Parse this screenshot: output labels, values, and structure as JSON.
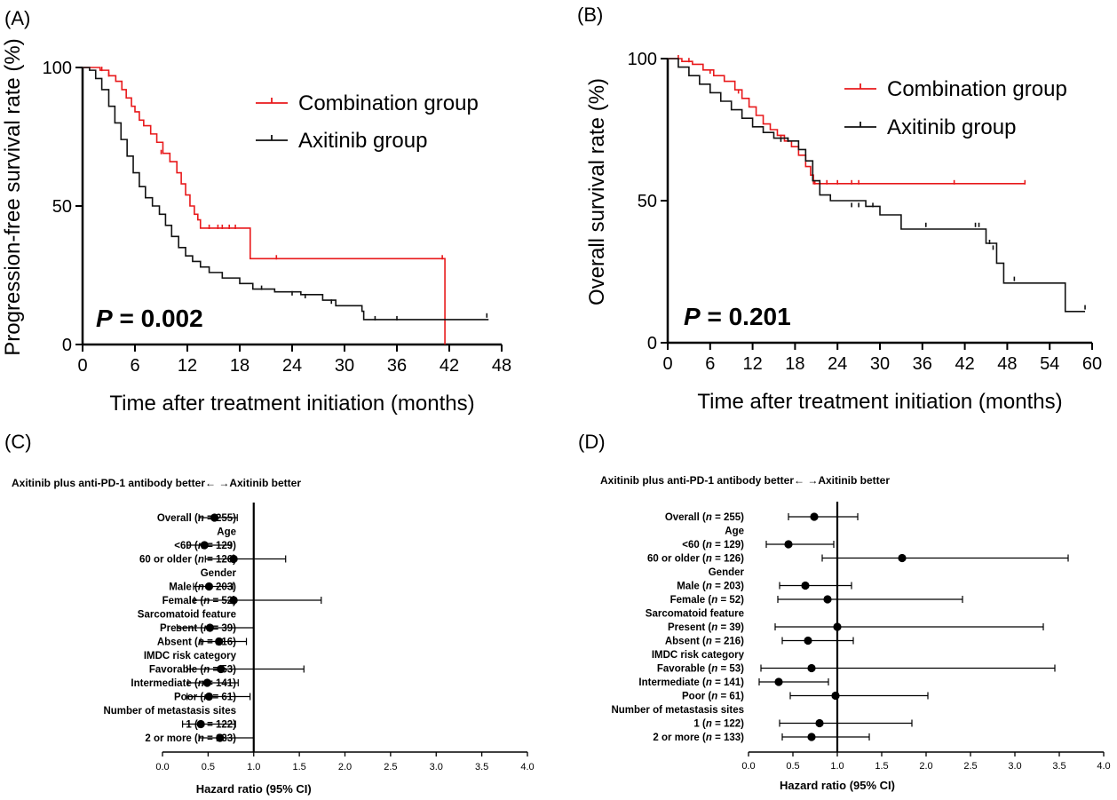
{
  "chart_data": [
    {
      "id": "A",
      "type": "line",
      "panel_label": "(A)",
      "ylabel": "Progression-free survival rate (%)",
      "xlabel": "Time after treatment initiation (months)",
      "xlim": [
        0,
        48
      ],
      "ylim": [
        0,
        100
      ],
      "xticks": [
        "0",
        "6",
        "12",
        "18",
        "24",
        "30",
        "36",
        "42",
        "48"
      ],
      "yticks": [
        "0",
        "50",
        "100"
      ],
      "p_label": "P",
      "p_value": "= 0.002",
      "series": [
        {
          "name": "Combination group",
          "color": "#e8191b",
          "points": [
            [
              0,
              100
            ],
            [
              1,
              100
            ],
            [
              2,
              99
            ],
            [
              3,
              97
            ],
            [
              3.8,
              95
            ],
            [
              4.5,
              92
            ],
            [
              5,
              89
            ],
            [
              5.6,
              86
            ],
            [
              6,
              84
            ],
            [
              6.5,
              81
            ],
            [
              7,
              79
            ],
            [
              7.8,
              76
            ],
            [
              8.5,
              73
            ],
            [
              9.2,
              69
            ],
            [
              10,
              66
            ],
            [
              10.8,
              62
            ],
            [
              11.3,
              58
            ],
            [
              11.8,
              54
            ],
            [
              12.3,
              50
            ],
            [
              12.8,
              47
            ],
            [
              13.2,
              45
            ],
            [
              13.5,
              42
            ],
            [
              19.2,
              42
            ],
            [
              19.2,
              31
            ],
            [
              41.5,
              31
            ],
            [
              41.5,
              0
            ]
          ],
          "censors": [
            [
              2.2,
              99
            ],
            [
              3,
              97
            ],
            [
              9,
              69
            ],
            [
              14.5,
              42
            ],
            [
              15.5,
              42
            ],
            [
              16,
              42
            ],
            [
              16.8,
              42
            ],
            [
              17.5,
              42
            ],
            [
              22.2,
              31
            ],
            [
              41.2,
              31
            ]
          ]
        },
        {
          "name": "Axitinib group",
          "color": "#111111",
          "points": [
            [
              0,
              100
            ],
            [
              0.8,
              99
            ],
            [
              1.5,
              96
            ],
            [
              2.2,
              92
            ],
            [
              3,
              86
            ],
            [
              3.7,
              80
            ],
            [
              4.4,
              74
            ],
            [
              5.1,
              68
            ],
            [
              5.8,
              62
            ],
            [
              6.5,
              57
            ],
            [
              7.2,
              53
            ],
            [
              8,
              50
            ],
            [
              8.8,
              47
            ],
            [
              9.5,
              43
            ],
            [
              10.2,
              39
            ],
            [
              11,
              35
            ],
            [
              11.8,
              32
            ],
            [
              12.6,
              30
            ],
            [
              13.5,
              28
            ],
            [
              14.5,
              26
            ],
            [
              16,
              24
            ],
            [
              18,
              22
            ],
            [
              19.5,
              20
            ],
            [
              22,
              19
            ],
            [
              25,
              18
            ],
            [
              27.5,
              16
            ],
            [
              29,
              14
            ],
            [
              32,
              12
            ],
            [
              32.2,
              9
            ],
            [
              46.5,
              9
            ]
          ],
          "censors": [
            [
              20.5,
              20
            ],
            [
              24,
              18
            ],
            [
              25.5,
              17
            ],
            [
              28.5,
              15
            ],
            [
              33.5,
              9
            ],
            [
              36,
              9
            ],
            [
              46.3,
              10
            ]
          ]
        }
      ]
    },
    {
      "id": "B",
      "type": "line",
      "panel_label": "(B)",
      "ylabel": "Overall survival rate (%)",
      "xlabel": "Time after treatment initiation (months)",
      "xlim": [
        0,
        60
      ],
      "ylim": [
        0,
        100
      ],
      "xticks": [
        "0",
        "6",
        "12",
        "18",
        "24",
        "30",
        "36",
        "42",
        "48",
        "54",
        "60"
      ],
      "yticks": [
        "0",
        "50",
        "100"
      ],
      "p_label": "P",
      "p_value": "= 0.201",
      "series": [
        {
          "name": "Combination group",
          "color": "#e8191b",
          "points": [
            [
              0,
              100
            ],
            [
              2,
              99
            ],
            [
              3.5,
              98
            ],
            [
              5,
              96
            ],
            [
              6.5,
              94
            ],
            [
              8,
              92
            ],
            [
              9.5,
              89
            ],
            [
              10.5,
              86
            ],
            [
              11.5,
              83
            ],
            [
              12.5,
              80
            ],
            [
              13.5,
              77
            ],
            [
              14.5,
              75
            ],
            [
              15.5,
              73
            ],
            [
              16.5,
              71
            ],
            [
              17.5,
              69
            ],
            [
              18.5,
              66
            ],
            [
              19.5,
              62
            ],
            [
              20.2,
              59
            ],
            [
              20.6,
              56
            ],
            [
              50.5,
              56
            ]
          ],
          "censors": [
            [
              1.5,
              100
            ],
            [
              3,
              99
            ],
            [
              6,
              95
            ],
            [
              10,
              88
            ],
            [
              16,
              72
            ],
            [
              20.8,
              56
            ],
            [
              21.5,
              56
            ],
            [
              22.5,
              56
            ],
            [
              24,
              56
            ],
            [
              26,
              56
            ],
            [
              27,
              56
            ],
            [
              40.5,
              56
            ],
            [
              50.5,
              56
            ]
          ]
        },
        {
          "name": "Axitinib group",
          "color": "#111111",
          "points": [
            [
              0,
              100
            ],
            [
              1.5,
              97
            ],
            [
              3,
              94
            ],
            [
              4.5,
              91
            ],
            [
              6,
              88
            ],
            [
              7.5,
              85
            ],
            [
              9,
              82
            ],
            [
              10.5,
              79
            ],
            [
              12,
              76
            ],
            [
              13.5,
              74
            ],
            [
              15,
              72
            ],
            [
              17,
              71
            ],
            [
              18.5,
              68
            ],
            [
              19.5,
              64
            ],
            [
              20.5,
              57
            ],
            [
              21.5,
              52
            ],
            [
              23,
              50
            ],
            [
              28,
              48
            ],
            [
              30,
              45
            ],
            [
              33,
              40
            ],
            [
              44.5,
              40
            ],
            [
              45,
              35
            ],
            [
              46.5,
              28
            ],
            [
              47.5,
              21
            ],
            [
              56,
              21
            ],
            [
              56.2,
              11
            ],
            [
              59,
              11
            ]
          ],
          "censors": [
            [
              16,
              71
            ],
            [
              17,
              71
            ],
            [
              26,
              48
            ],
            [
              27,
              48
            ],
            [
              29,
              48
            ],
            [
              36.5,
              41
            ],
            [
              43.5,
              41
            ],
            [
              44,
              41
            ],
            [
              45.5,
              35
            ],
            [
              46,
              33
            ],
            [
              49,
              22
            ],
            [
              59,
              12
            ]
          ]
        }
      ]
    },
    {
      "id": "C",
      "type": "scatter",
      "panel_label": "(C)",
      "title": "Axitinib plus anti-PD-1 antibody better←  →Axitinib better",
      "xlabel": "Hazard ratio (95% CI)",
      "xlim": [
        0,
        4
      ],
      "xticks": [
        "0.0",
        "0.5",
        "1.0",
        "1.5",
        "2.0",
        "2.5",
        "3.0",
        "3.5",
        "4.0"
      ],
      "rows": [
        {
          "pre": "Overall (",
          "n": "n",
          "post": " = 255)",
          "hr": 0.57,
          "lo": 0.4,
          "hi": 0.82
        },
        {
          "pre": "Age",
          "hr": null
        },
        {
          "pre": "<60 (",
          "n": "n",
          "post": " = 129)",
          "hr": 0.46,
          "lo": 0.27,
          "hi": 0.75
        },
        {
          "pre": "60 or older (",
          "n": "n",
          "post": " = 126)",
          "hr": 0.78,
          "lo": 0.47,
          "hi": 1.35
        },
        {
          "pre": "Gender",
          "hr": null
        },
        {
          "pre": "Male (",
          "n": "n",
          "post": " = 203)",
          "hr": 0.51,
          "lo": 0.34,
          "hi": 0.77
        },
        {
          "pre": "Female (",
          "n": "n",
          "post": " = 52)",
          "hr": 0.78,
          "lo": 0.35,
          "hi": 1.74
        },
        {
          "pre": "Sarcomatoid feature",
          "hr": null
        },
        {
          "pre": "Present (",
          "n": "n",
          "post": " = 39)",
          "hr": 0.52,
          "lo": 0.16,
          "hi": 1.0
        },
        {
          "pre": "Absent (",
          "n": "n",
          "post": " = 216)",
          "hr": 0.62,
          "lo": 0.42,
          "hi": 0.92
        },
        {
          "pre": "IMDC risk category",
          "hr": null
        },
        {
          "pre": "Favorable (",
          "n": "n",
          "post": " = 53)",
          "hr": 0.64,
          "lo": 0.27,
          "hi": 1.55
        },
        {
          "pre": "Intermediate (",
          "n": "n",
          "post": " = 141)",
          "hr": 0.49,
          "lo": 0.28,
          "hi": 0.83
        },
        {
          "pre": "Poor (",
          "n": "n",
          "post": " = 61)",
          "hr": 0.51,
          "lo": 0.27,
          "hi": 0.96
        },
        {
          "pre": "Number of metastasis sites",
          "hr": null
        },
        {
          "pre": "1 (",
          "n": "n",
          "post": " = 122)",
          "hr": 0.42,
          "lo": 0.22,
          "hi": 0.8
        },
        {
          "pre": "2 or more (",
          "n": "n",
          "post": " = 133)",
          "hr": 0.63,
          "lo": 0.4,
          "hi": 1.0
        }
      ]
    },
    {
      "id": "D",
      "type": "scatter",
      "panel_label": "(D)",
      "title": "Axitinib plus anti-PD-1 antibody better←  →Axitinib better",
      "xlabel": "Hazard ratio (95% CI)",
      "xlim": [
        0,
        4
      ],
      "xticks": [
        "0.0",
        "0.5",
        "1.0",
        "1.5",
        "2.0",
        "2.5",
        "3.0",
        "3.5",
        "4.0"
      ],
      "rows": [
        {
          "pre": "Overall (",
          "n": "n",
          "post": " = 255)",
          "hr": 0.74,
          "lo": 0.45,
          "hi": 1.23
        },
        {
          "pre": "Age",
          "hr": null
        },
        {
          "pre": "<60 (",
          "n": "n",
          "post": " = 129)",
          "hr": 0.45,
          "lo": 0.2,
          "hi": 0.96
        },
        {
          "pre": "60 or older (",
          "n": "n",
          "post": " = 126)",
          "hr": 1.73,
          "lo": 0.83,
          "hi": 3.6
        },
        {
          "pre": "Gender",
          "hr": null
        },
        {
          "pre": "Male (",
          "n": "n",
          "post": " = 203)",
          "hr": 0.64,
          "lo": 0.35,
          "hi": 1.16
        },
        {
          "pre": "Female (",
          "n": "n",
          "post": " = 52)",
          "hr": 0.89,
          "lo": 0.33,
          "hi": 2.41
        },
        {
          "pre": "Sarcomatoid feature",
          "hr": null
        },
        {
          "pre": "Present (",
          "n": "n",
          "post": " = 39)",
          "hr": 1.0,
          "lo": 0.3,
          "hi": 3.32
        },
        {
          "pre": "Absent (",
          "n": "n",
          "post": " = 216)",
          "hr": 0.67,
          "lo": 0.38,
          "hi": 1.18
        },
        {
          "pre": "IMDC risk category",
          "hr": null
        },
        {
          "pre": "Favorable (",
          "n": "n",
          "post": " = 53)",
          "hr": 0.71,
          "lo": 0.14,
          "hi": 3.45
        },
        {
          "pre": "Intermediate (",
          "n": "n",
          "post": " = 141)",
          "hr": 0.34,
          "lo": 0.12,
          "hi": 0.9
        },
        {
          "pre": "Poor (",
          "n": "n",
          "post": " = 61)",
          "hr": 0.98,
          "lo": 0.47,
          "hi": 2.02
        },
        {
          "pre": "Number of metastasis sites",
          "hr": null
        },
        {
          "pre": "1 (",
          "n": "n",
          "post": " = 122)",
          "hr": 0.8,
          "lo": 0.35,
          "hi": 1.84
        },
        {
          "pre": "2 or more (",
          "n": "n",
          "post": " = 133)",
          "hr": 0.71,
          "lo": 0.38,
          "hi": 1.36
        }
      ]
    }
  ]
}
